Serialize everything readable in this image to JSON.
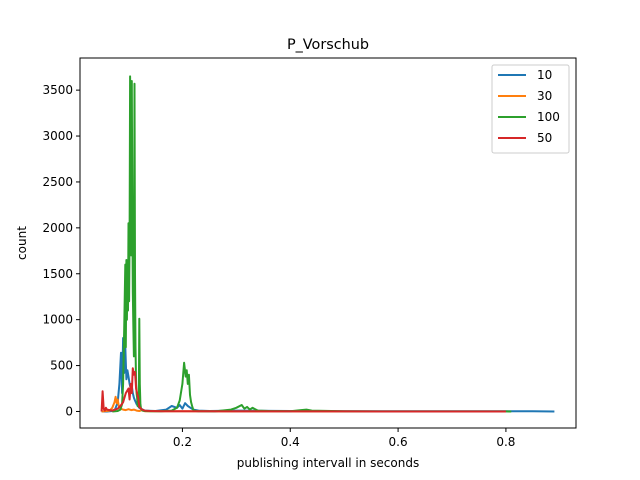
{
  "chart_data": {
    "type": "line",
    "title": "P_Vorschub",
    "xlabel": "publishing intervall in seconds",
    "ylabel": "count",
    "xlim": [
      0.01,
      0.93
    ],
    "ylim": [
      -180,
      3850
    ],
    "xticks": [
      0.2,
      0.4,
      0.6,
      0.8
    ],
    "xtick_labels": [
      "0.2",
      "0.4",
      "0.6",
      "0.8"
    ],
    "yticks": [
      0,
      500,
      1000,
      1500,
      2000,
      2500,
      3000,
      3500
    ],
    "ytick_labels": [
      "0",
      "500",
      "1000",
      "1500",
      "2000",
      "2500",
      "3000",
      "3500"
    ],
    "grid": false,
    "legend_position": "top-right",
    "series": [
      {
        "name": "10",
        "color": "#1f77b4",
        "x": [
          0.05,
          0.06,
          0.07,
          0.075,
          0.08,
          0.083,
          0.086,
          0.088,
          0.09,
          0.092,
          0.094,
          0.096,
          0.098,
          0.1,
          0.102,
          0.104,
          0.106,
          0.108,
          0.11,
          0.112,
          0.115,
          0.12,
          0.13,
          0.15,
          0.17,
          0.18,
          0.19,
          0.195,
          0.2,
          0.205,
          0.21,
          0.215,
          0.22,
          0.23,
          0.25,
          0.3,
          0.4,
          0.5,
          0.6,
          0.7,
          0.8,
          0.85,
          0.89
        ],
        "y": [
          0,
          0,
          5,
          20,
          100,
          300,
          640,
          200,
          800,
          420,
          700,
          350,
          450,
          380,
          300,
          250,
          280,
          200,
          150,
          120,
          80,
          40,
          10,
          5,
          20,
          60,
          40,
          70,
          30,
          90,
          60,
          40,
          20,
          10,
          5,
          10,
          5,
          2,
          2,
          2,
          2,
          2,
          0
        ]
      },
      {
        "name": "30",
        "color": "#ff7f0e",
        "x": [
          0.05,
          0.065,
          0.07,
          0.074,
          0.076,
          0.078,
          0.08,
          0.082,
          0.085,
          0.09,
          0.095,
          0.1,
          0.105,
          0.11,
          0.115,
          0.12,
          0.125,
          0.13,
          0.16,
          0.2,
          0.3,
          0.4,
          0.5,
          0.6,
          0.7,
          0.8
        ],
        "y": [
          0,
          10,
          40,
          100,
          160,
          90,
          130,
          60,
          30,
          20,
          15,
          25,
          15,
          20,
          10,
          5,
          15,
          3,
          2,
          2,
          1,
          1,
          0,
          0,
          0,
          0
        ]
      },
      {
        "name": "100",
        "color": "#2ca02c",
        "x": [
          0.07,
          0.08,
          0.085,
          0.088,
          0.09,
          0.092,
          0.094,
          0.095,
          0.096,
          0.097,
          0.098,
          0.099,
          0.1,
          0.101,
          0.102,
          0.103,
          0.104,
          0.105,
          0.106,
          0.107,
          0.108,
          0.109,
          0.11,
          0.111,
          0.112,
          0.113,
          0.114,
          0.115,
          0.116,
          0.117,
          0.118,
          0.119,
          0.12,
          0.121,
          0.122,
          0.123,
          0.124,
          0.126,
          0.13,
          0.14,
          0.16,
          0.18,
          0.19,
          0.195,
          0.2,
          0.203,
          0.206,
          0.208,
          0.21,
          0.212,
          0.214,
          0.216,
          0.218,
          0.22,
          0.222,
          0.225,
          0.23,
          0.24,
          0.26,
          0.29,
          0.3,
          0.31,
          0.315,
          0.32,
          0.325,
          0.33,
          0.34,
          0.36,
          0.4,
          0.42,
          0.43,
          0.44,
          0.5,
          0.6,
          0.7,
          0.8,
          0.81
        ],
        "y": [
          0,
          5,
          20,
          80,
          300,
          900,
          1600,
          700,
          1650,
          1000,
          1500,
          1100,
          2050,
          1200,
          1900,
          3650,
          2500,
          1700,
          3600,
          2200,
          1300,
          900,
          600,
          3570,
          1500,
          700,
          300,
          200,
          150,
          60,
          100,
          50,
          1010,
          300,
          80,
          40,
          20,
          10,
          5,
          3,
          2,
          10,
          40,
          120,
          300,
          530,
          380,
          450,
          300,
          400,
          180,
          100,
          60,
          20,
          10,
          5,
          3,
          2,
          1,
          20,
          40,
          70,
          30,
          50,
          20,
          40,
          10,
          5,
          2,
          15,
          20,
          10,
          2,
          1,
          1,
          1,
          0
        ]
      },
      {
        "name": "50",
        "color": "#d62728",
        "x": [
          0.05,
          0.052,
          0.054,
          0.056,
          0.058,
          0.06,
          0.065,
          0.07,
          0.075,
          0.08,
          0.085,
          0.09,
          0.095,
          0.1,
          0.102,
          0.104,
          0.106,
          0.108,
          0.11,
          0.112,
          0.114,
          0.116,
          0.118,
          0.12,
          0.125,
          0.13,
          0.14,
          0.16,
          0.2,
          0.3,
          0.4,
          0.5,
          0.6,
          0.7,
          0.8
        ],
        "y": [
          0,
          220,
          30,
          10,
          40,
          20,
          15,
          10,
          20,
          30,
          60,
          100,
          200,
          250,
          130,
          300,
          200,
          470,
          400,
          430,
          250,
          200,
          150,
          50,
          20,
          10,
          5,
          3,
          2,
          1,
          1,
          1,
          0,
          0,
          0
        ]
      }
    ]
  }
}
